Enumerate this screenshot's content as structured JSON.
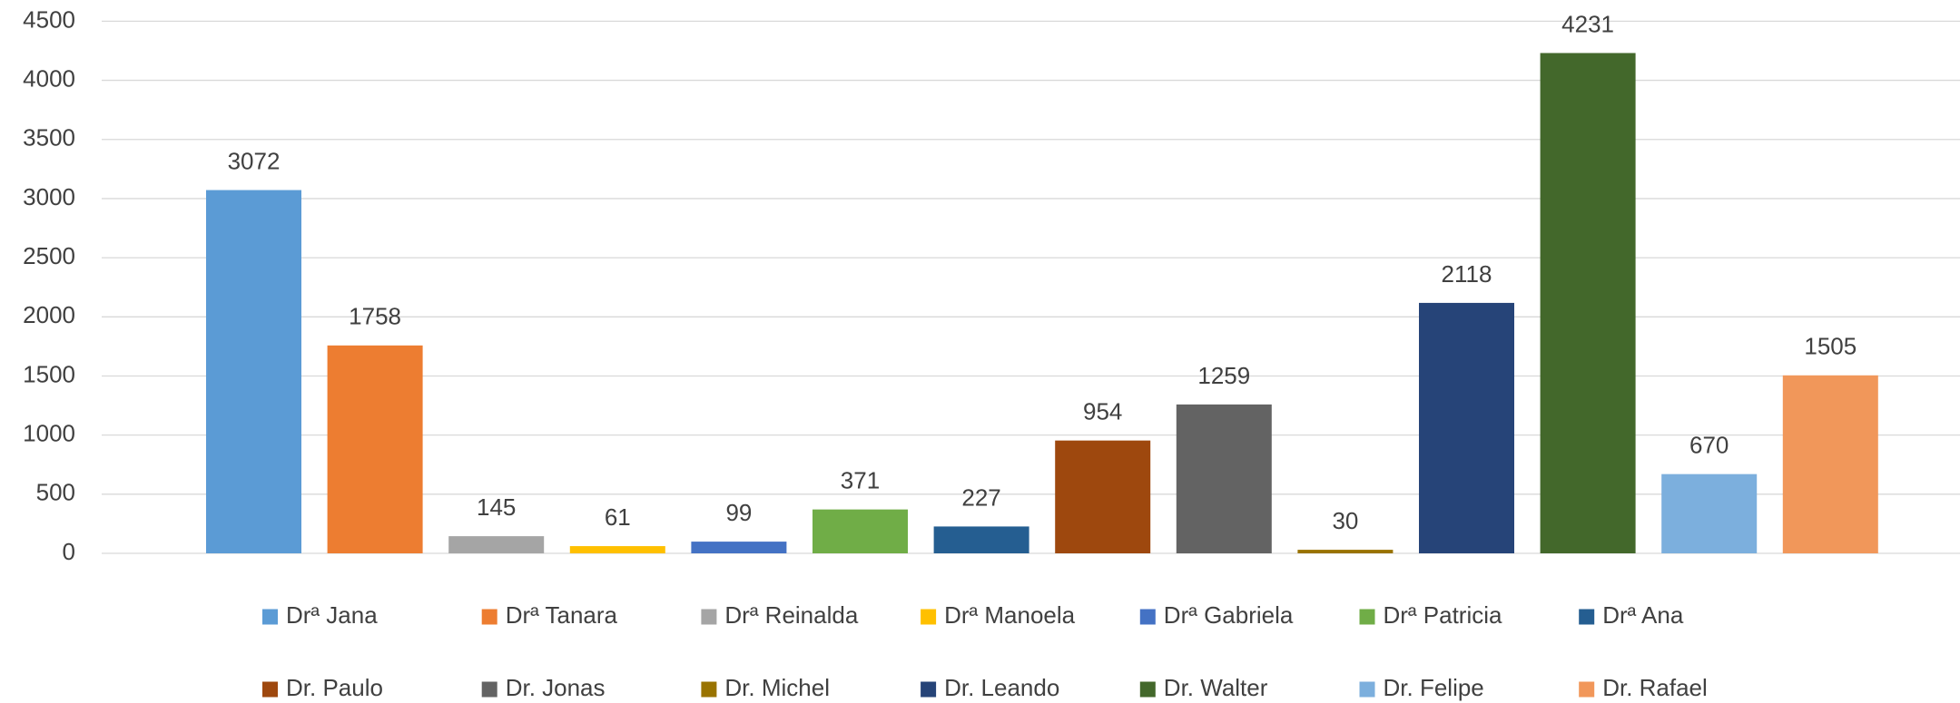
{
  "chart_data": {
    "type": "bar",
    "categories": [
      "Drª Jana",
      "Drª Tanara",
      "Drª Reinalda",
      "Drª Manoela",
      "Drª Gabriela",
      "Drª Patricia",
      "Drª Ana",
      "Dr. Paulo",
      "Dr. Jonas",
      "Dr. Michel",
      "Dr. Leando",
      "Dr. Walter",
      "Dr. Felipe",
      "Dr. Rafael"
    ],
    "values": [
      3072,
      1758,
      145,
      61,
      99,
      371,
      227,
      954,
      1259,
      30,
      2118,
      4231,
      670,
      1505
    ],
    "colors": [
      "#5b9bd5",
      "#ed7d31",
      "#a5a5a5",
      "#ffc000",
      "#4472c4",
      "#70ad47",
      "#255e91",
      "#9e480e",
      "#636363",
      "#997300",
      "#264478",
      "#43682b",
      "#7cafdd",
      "#f1975a"
    ],
    "ylim": [
      0,
      4500
    ],
    "yticks": [
      0,
      500,
      1000,
      1500,
      2000,
      2500,
      3000,
      3500,
      4000,
      4500
    ],
    "grid": true,
    "legend": "bottom"
  }
}
